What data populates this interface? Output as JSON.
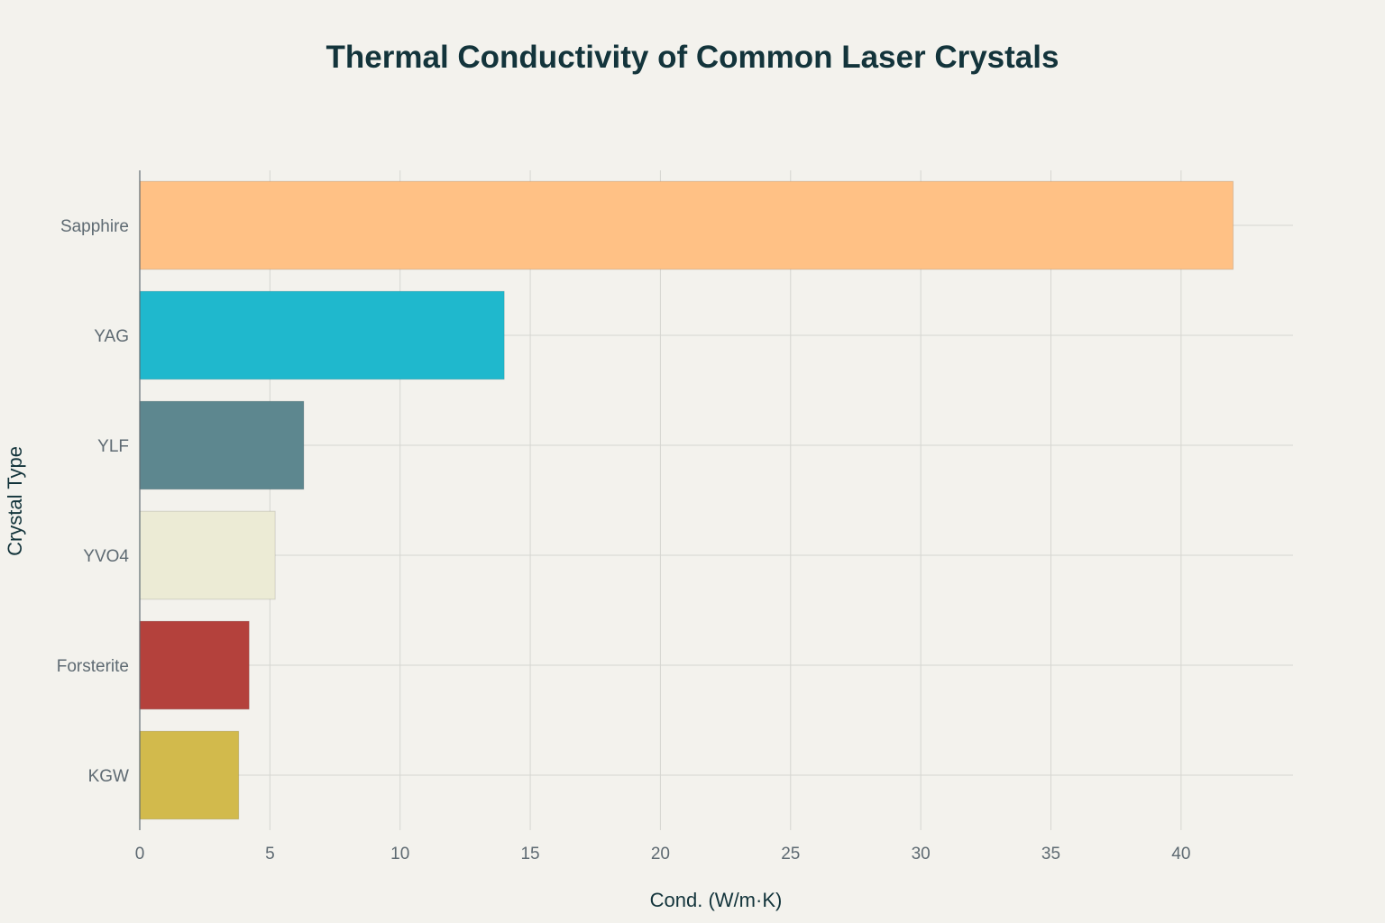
{
  "chart_data": {
    "type": "bar",
    "orientation": "horizontal",
    "title": "Thermal Conductivity of Common Laser Crystals",
    "xlabel": "Cond. (W/m·K)",
    "ylabel": "Crystal Type",
    "xlim": [
      0,
      44.3
    ],
    "xticks": [
      0,
      5,
      10,
      15,
      20,
      25,
      30,
      35,
      40
    ],
    "grid": true,
    "legend": "none",
    "categories": [
      "Sapphire",
      "YAG",
      "YLF",
      "YVO4",
      "Forsterite",
      "KGW"
    ],
    "values": [
      42,
      14,
      6.3,
      5.2,
      4.2,
      3.8
    ],
    "colors": [
      "#ffc185",
      "#1fb8cd",
      "#5d878f",
      "#ecebd5",
      "#b4413c",
      "#d2ba4c"
    ]
  }
}
